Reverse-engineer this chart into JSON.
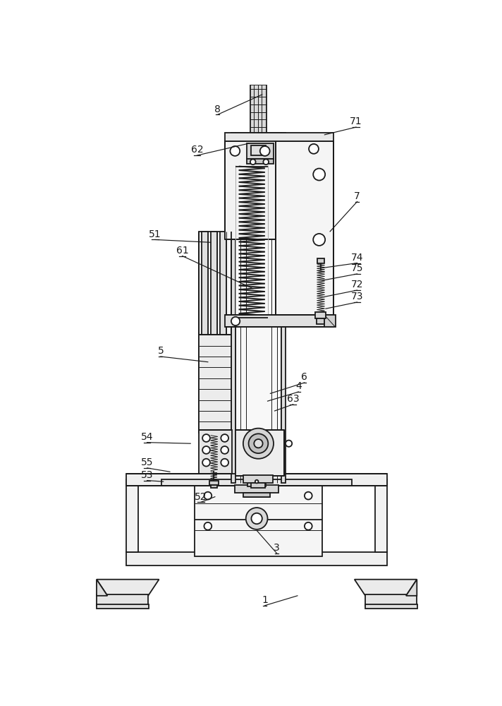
{
  "bg": "#ffffff",
  "lc": "#1a1a1a",
  "lw": 1.3,
  "tlw": 0.7,
  "labels": [
    [
      "8",
      283,
      55,
      365,
      18
    ],
    [
      "62",
      245,
      130,
      340,
      108
    ],
    [
      "71",
      538,
      78,
      480,
      92
    ],
    [
      "7",
      540,
      215,
      490,
      270
    ],
    [
      "61",
      218,
      315,
      348,
      375
    ],
    [
      "51",
      168,
      285,
      270,
      290
    ],
    [
      "5",
      178,
      500,
      265,
      510
    ],
    [
      "74",
      540,
      328,
      476,
      337
    ],
    [
      "75",
      540,
      348,
      476,
      360
    ],
    [
      "72",
      540,
      378,
      480,
      390
    ],
    [
      "73",
      540,
      400,
      482,
      412
    ],
    [
      "6",
      443,
      548,
      380,
      568
    ],
    [
      "4",
      432,
      565,
      375,
      582
    ],
    [
      "63",
      422,
      588,
      388,
      600
    ],
    [
      "54",
      153,
      658,
      233,
      660
    ],
    [
      "55",
      153,
      705,
      195,
      712
    ],
    [
      "53",
      153,
      728,
      183,
      730
    ],
    [
      "52",
      252,
      768,
      278,
      758
    ],
    [
      "3",
      392,
      862,
      355,
      820
    ],
    [
      "1",
      370,
      958,
      430,
      940
    ]
  ]
}
